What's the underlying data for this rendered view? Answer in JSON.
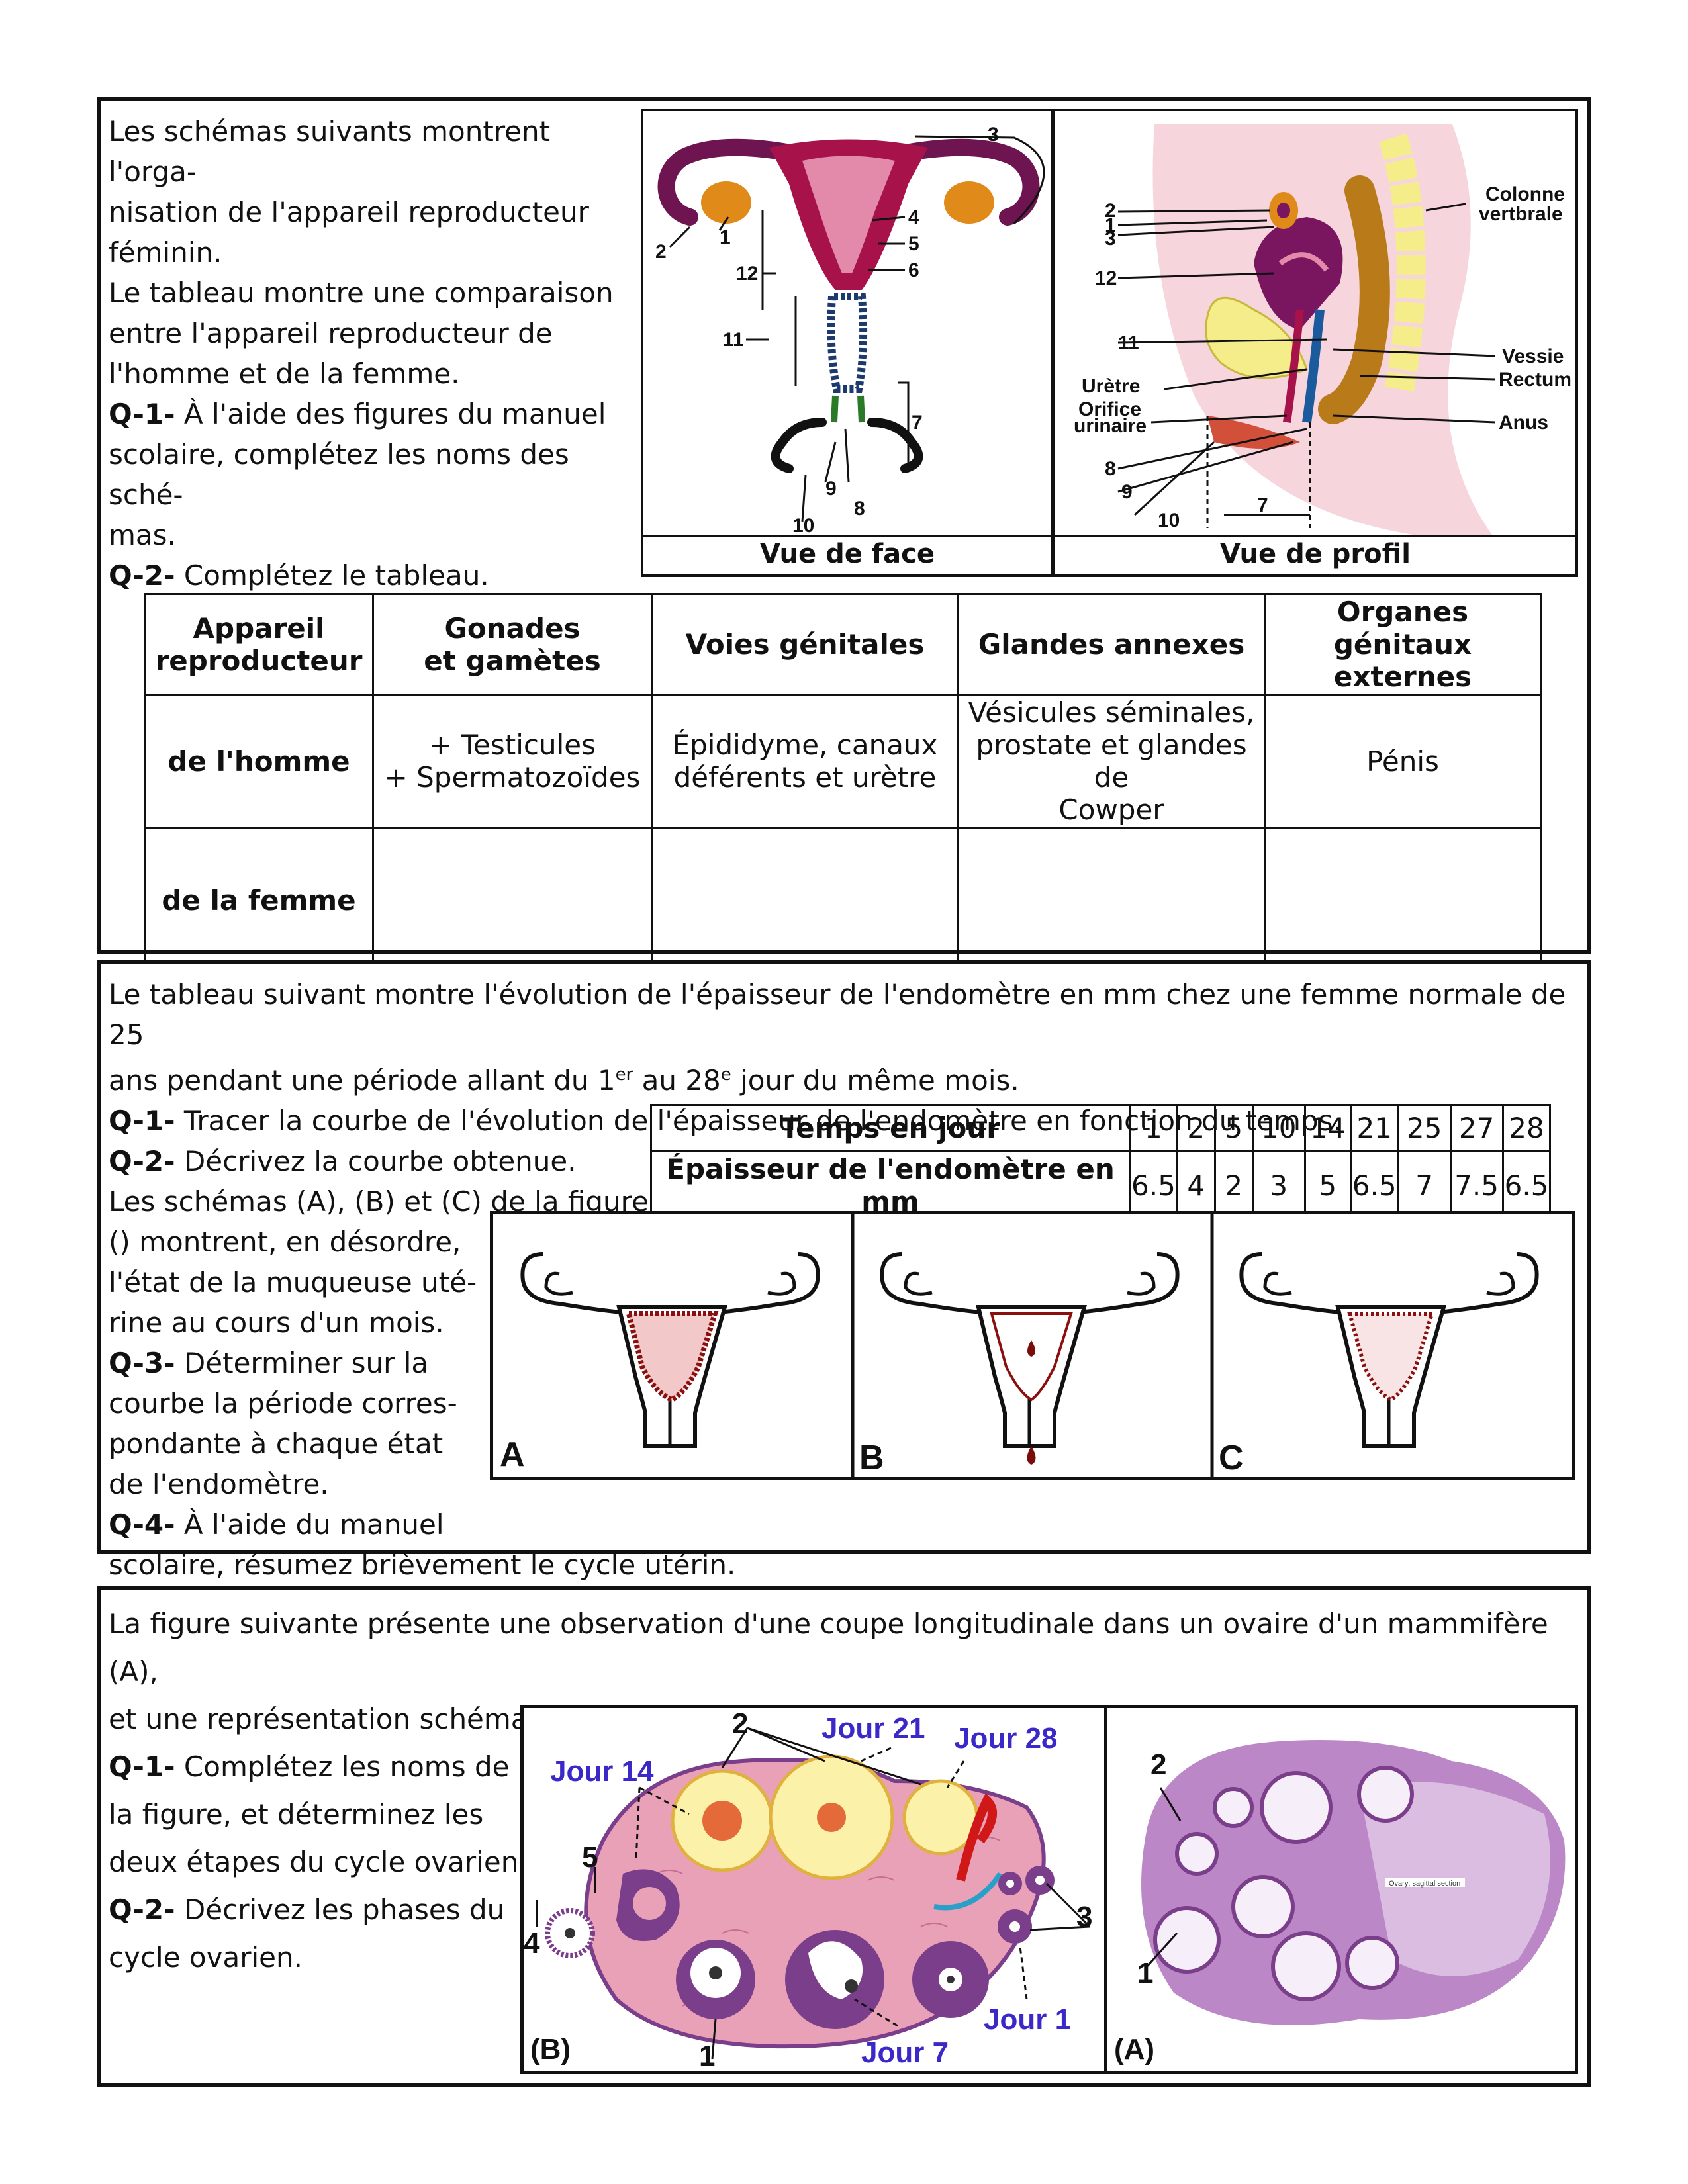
{
  "section1": {
    "lines": [
      "Les schémas suivants montrent l'orga-",
      "nisation de l'appareil reproducteur",
      "féminin.",
      "Le tableau montre une comparaison",
      "entre l'appareil reproducteur de",
      "l'homme et de la femme."
    ],
    "q1_label": "Q-1-",
    "q1_lines": [
      " À l'aide des figures du manuel",
      "scolaire, complétez les noms des sché-",
      "mas."
    ],
    "q2_label": "Q-2-",
    "q2_text": " Complétez le tableau.",
    "caption_front": "Vue de face",
    "caption_profile": "Vue de profil",
    "front_labels": [
      "1",
      "2",
      "3",
      "4",
      "5",
      "6",
      "7",
      "8",
      "9",
      "10",
      "11",
      "12"
    ],
    "profile_labels": {
      "n2": "2",
      "n1": "1",
      "n3": "3",
      "n12": "12",
      "n11": "11",
      "uretre": "Urètre",
      "orifice1": "Orifice",
      "orifice2": "urinaire",
      "n8": "8",
      "n9": "9",
      "n10": "10",
      "n7": "7",
      "colonne1": "Colonne",
      "colonne2": "vertbrale",
      "vessie": "Vessie",
      "rectum": "Rectum",
      "anus": "Anus"
    },
    "table": {
      "headers": [
        [
          "Appareil",
          "reproducteur"
        ],
        [
          "Gonades",
          "et gamètes"
        ],
        [
          "Voies génitales"
        ],
        [
          "Glandes annexes"
        ],
        [
          "Organes génitaux",
          "externes"
        ]
      ],
      "row_homme": {
        "label": "de l'homme",
        "gonades": [
          "+ Testicules",
          "+ Spermatozoïdes"
        ],
        "voies": [
          "Épididyme, canaux",
          "déférents et urètre"
        ],
        "glandes": [
          "Vésicules séminales,",
          "prostate et glandes de",
          "Cowper"
        ],
        "organes": [
          "Pénis"
        ]
      },
      "row_femme": {
        "label": "de la femme"
      }
    }
  },
  "section2": {
    "line1": "Le tableau suivant montre l'évolution de l'épaisseur de l'endomètre en mm chez une femme normale de 25",
    "line2_a": "ans pendant une période allant du 1",
    "line2_sup1": "er",
    "line2_b": " au 28",
    "line2_sup2": "e",
    "line2_c": " jour du même mois.",
    "q1_label": "Q-1-",
    "q1_text": " Tracer la courbe de l'évolution de l'épaisseur de l'endomètre en fonction du temps.",
    "q2_label": "Q-2-",
    "q2_text": " Décrivez la courbe obtenue.",
    "text_lines": [
      "Les schémas (A), (B) et (C) de la figure",
      "() montrent, en désordre,",
      "l'état de la muqueuse uté-",
      "rine au cours d'un mois."
    ],
    "q3_label": "Q-3-",
    "q3_lines": [
      " Déterminer sur la",
      "courbe la période corres-",
      "pondante à chaque état",
      "de l'endomètre."
    ],
    "q4_label": "Q-4-",
    "q4_lines": [
      " À l'aide du manuel",
      "scolaire, résumez brièvement le cycle utérin."
    ],
    "data_table": {
      "row1_label": "Temps en jour",
      "row2_label": "Épaisseur de l'endomètre en mm",
      "days": [
        "1",
        "2",
        "5",
        "10",
        "14",
        "21",
        "25",
        "27",
        "28"
      ],
      "thickness": [
        "6.5",
        "4",
        "2",
        "3",
        "5",
        "6.5",
        "7",
        "7.5",
        "6.5"
      ]
    },
    "panels": [
      "A",
      "B",
      "C"
    ]
  },
  "section3": {
    "line1": "La figure suivante présente une observation d'une coupe longitudinale dans un ovaire d'un mammifère (A),",
    "line2": "et une représentation schématique de l'évolution des structures ovariennes durant un cycle ovarien (B).",
    "q1_label": "Q-1-",
    "q1_lines": [
      " Complétez les noms de",
      "la figure, et déterminez les",
      "deux étapes du cycle ovarien."
    ],
    "q2_label": "Q-2-",
    "q2_lines": [
      " Décrivez les phases du",
      "cycle ovarien."
    ],
    "diagram_B": {
      "panel": "(B)",
      "jour14": "Jour 14",
      "jour21": "Jour 21",
      "jour28": "Jour 28",
      "jour1": "Jour 1",
      "jour7": "Jour 7",
      "n1": "1",
      "n2": "2",
      "n3": "3",
      "n4": "4",
      "n5": "5"
    },
    "diagram_A": {
      "panel": "(A)",
      "n1": "1",
      "n2": "2",
      "tag": "Ovary; sagittal section"
    }
  },
  "colors": {
    "uterus": "#a8124a",
    "ovary": "#e08a1a",
    "profile_bg": "#f6d6dc",
    "bladder": "#f5ec8a",
    "rectum": "#b97a1a",
    "blue_label": "#3b28c9",
    "ovary_pink": "#e9a1b8",
    "follicle_purple": "#7b3e8a",
    "histology": "#9a5aa6"
  }
}
